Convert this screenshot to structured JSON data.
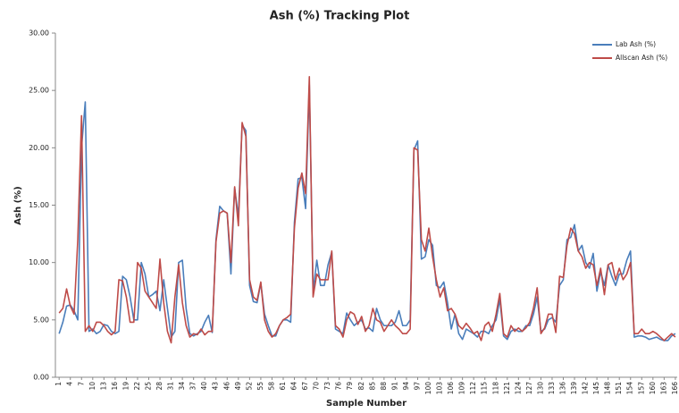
{
  "chart_data": {
    "type": "line",
    "title": "Ash (%) Tracking Plot",
    "x_label": "Sample Number",
    "y_label": "Ash (%)",
    "x": [
      1,
      2,
      3,
      4,
      5,
      6,
      7,
      8,
      9,
      10,
      11,
      12,
      13,
      14,
      15,
      16,
      17,
      18,
      19,
      20,
      21,
      22,
      23,
      24,
      25,
      26,
      27,
      28,
      29,
      30,
      31,
      32,
      33,
      34,
      35,
      36,
      37,
      38,
      39,
      40,
      41,
      42,
      43,
      44,
      45,
      46,
      47,
      48,
      49,
      50,
      51,
      52,
      53,
      54,
      55,
      56,
      57,
      58,
      59,
      60,
      61,
      62,
      63,
      64,
      65,
      66,
      67,
      68,
      69,
      70,
      71,
      72,
      73,
      74,
      75,
      76,
      77,
      78,
      79,
      80,
      81,
      82,
      83,
      84,
      85,
      86,
      87,
      88,
      89,
      90,
      91,
      92,
      93,
      94,
      95,
      96,
      97,
      98,
      99,
      100,
      101,
      102,
      103,
      104,
      105,
      106,
      107,
      108,
      109,
      110,
      111,
      112,
      113,
      114,
      115,
      116,
      117,
      118,
      119,
      120,
      121,
      122,
      123,
      124,
      125,
      126,
      127,
      128,
      129,
      130,
      131,
      132,
      133,
      134,
      135,
      136,
      137,
      138,
      139,
      140,
      141,
      142,
      143,
      144,
      145,
      146,
      147,
      148,
      149,
      150,
      151,
      152,
      153,
      154,
      155,
      156,
      157,
      158,
      159,
      160,
      161,
      162,
      163,
      164,
      165,
      166
    ],
    "xlim": [
      0,
      166.5
    ],
    "xticks": [
      1,
      4,
      7,
      10,
      13,
      16,
      19,
      22,
      25,
      28,
      31,
      34,
      37,
      40,
      43,
      46,
      49,
      52,
      55,
      58,
      61,
      64,
      67,
      70,
      73,
      76,
      79,
      82,
      85,
      88,
      91,
      94,
      97,
      100,
      103,
      106,
      109,
      112,
      115,
      118,
      121,
      124,
      127,
      130,
      133,
      136,
      139,
      142,
      145,
      148,
      151,
      154,
      157,
      160,
      163,
      166
    ],
    "ylim": [
      0,
      30
    ],
    "yticks": [
      {
        "value": 0,
        "label": "0.00"
      },
      {
        "value": 5,
        "label": "5.00"
      },
      {
        "value": 10,
        "label": "10.00"
      },
      {
        "value": 15,
        "label": "15.00"
      },
      {
        "value": 20,
        "label": "20.00"
      },
      {
        "value": 25,
        "label": "25.00"
      },
      {
        "value": 30,
        "label": "30.00"
      }
    ],
    "grid": false,
    "legend": "top-right",
    "series": [
      {
        "name": "Lab Ash (%)",
        "color": "#4a7ebb",
        "values": [
          3.8,
          4.8,
          6.2,
          6.3,
          5.8,
          5.0,
          20.0,
          24.0,
          4.0,
          4.2,
          3.8,
          4.0,
          4.6,
          4.5,
          4.0,
          3.8,
          4.0,
          8.8,
          8.5,
          7.0,
          5.0,
          5.0,
          10.0,
          9.0,
          7.0,
          7.2,
          7.5,
          5.8,
          8.5,
          6.0,
          3.5,
          4.0,
          10.0,
          10.2,
          6.0,
          3.8,
          3.6,
          3.8,
          4.0,
          4.8,
          5.4,
          3.9,
          12.0,
          14.9,
          14.5,
          14.3,
          9.0,
          16.5,
          14.0,
          22.0,
          21.5,
          8.0,
          6.6,
          6.5,
          8.2,
          5.5,
          4.5,
          3.6,
          3.6,
          4.5,
          5.0,
          5.0,
          4.8,
          13.5,
          17.3,
          17.4,
          14.7,
          25.5,
          7.5,
          10.2,
          8.0,
          8.0,
          9.8,
          10.9,
          4.2,
          4.0,
          3.8,
          5.6,
          5.0,
          4.5,
          4.8,
          5.0,
          4.2,
          4.3,
          4.0,
          6.0,
          5.0,
          4.5,
          4.5,
          4.5,
          4.8,
          5.8,
          4.5,
          4.5,
          5.0,
          19.8,
          20.6,
          10.3,
          10.5,
          12.0,
          11.5,
          8.0,
          7.8,
          8.3,
          6.5,
          4.2,
          5.5,
          3.8,
          3.3,
          4.2,
          4.0,
          3.8,
          3.5,
          4.0,
          4.0,
          3.8,
          4.5,
          5.0,
          6.8,
          3.6,
          3.3,
          4.0,
          4.2,
          4.0,
          4.0,
          4.5,
          4.5,
          5.5,
          7.0,
          4.0,
          4.2,
          5.0,
          5.2,
          4.8,
          8.0,
          8.5,
          12.0,
          12.2,
          13.3,
          11.0,
          11.5,
          10.0,
          9.5,
          10.8,
          7.5,
          9.2,
          8.0,
          9.8,
          8.8,
          8.0,
          9.0,
          9.0,
          10.2,
          11.0,
          3.5,
          3.6,
          3.6,
          3.5,
          3.3,
          3.4,
          3.5,
          3.3,
          3.2,
          3.2,
          3.6,
          3.8
        ]
      },
      {
        "name": "Allscan Ash (%)",
        "color": "#be4b48",
        "values": [
          5.6,
          6.0,
          7.7,
          6.2,
          5.5,
          12.0,
          22.8,
          4.0,
          4.5,
          4.0,
          4.8,
          4.8,
          4.5,
          4.0,
          3.7,
          4.0,
          8.5,
          8.4,
          7.0,
          4.8,
          4.8,
          10.0,
          9.5,
          7.5,
          7.0,
          6.5,
          6.0,
          10.3,
          6.5,
          4.0,
          3.0,
          7.0,
          9.8,
          6.5,
          4.5,
          3.5,
          3.8,
          3.7,
          4.2,
          3.7,
          4.0,
          4.0,
          11.8,
          14.3,
          14.5,
          14.3,
          10.0,
          16.6,
          13.2,
          22.2,
          21.0,
          8.5,
          7.0,
          6.7,
          8.3,
          5.0,
          4.0,
          3.5,
          3.8,
          4.5,
          5.0,
          5.2,
          5.5,
          13.0,
          16.5,
          17.8,
          16.0,
          26.2,
          7.0,
          9.0,
          8.5,
          8.5,
          8.5,
          11.0,
          4.5,
          4.2,
          3.5,
          5.0,
          5.7,
          5.5,
          4.6,
          5.3,
          4.0,
          4.5,
          6.0,
          5.0,
          4.8,
          4.0,
          4.5,
          5.0,
          4.5,
          4.2,
          3.8,
          3.8,
          4.2,
          20.0,
          19.8,
          12.0,
          11.0,
          13.0,
          10.5,
          8.5,
          7.0,
          7.8,
          5.8,
          6.0,
          5.5,
          4.5,
          4.2,
          4.7,
          4.3,
          3.8,
          4.0,
          3.2,
          4.5,
          4.8,
          4.0,
          5.5,
          7.3,
          3.8,
          3.5,
          4.5,
          4.0,
          4.3,
          4.0,
          4.3,
          4.8,
          6.0,
          7.8,
          3.8,
          4.3,
          5.5,
          5.5,
          3.9,
          8.8,
          8.7,
          11.5,
          13.0,
          12.5,
          11.0,
          10.5,
          9.5,
          10.0,
          9.8,
          8.0,
          9.5,
          7.2,
          9.8,
          10.0,
          8.5,
          9.5,
          8.5,
          9.0,
          10.0,
          3.8,
          3.8,
          4.2,
          3.8,
          3.8,
          4.0,
          3.8,
          3.5,
          3.2,
          3.5,
          3.8,
          3.5
        ]
      }
    ]
  }
}
